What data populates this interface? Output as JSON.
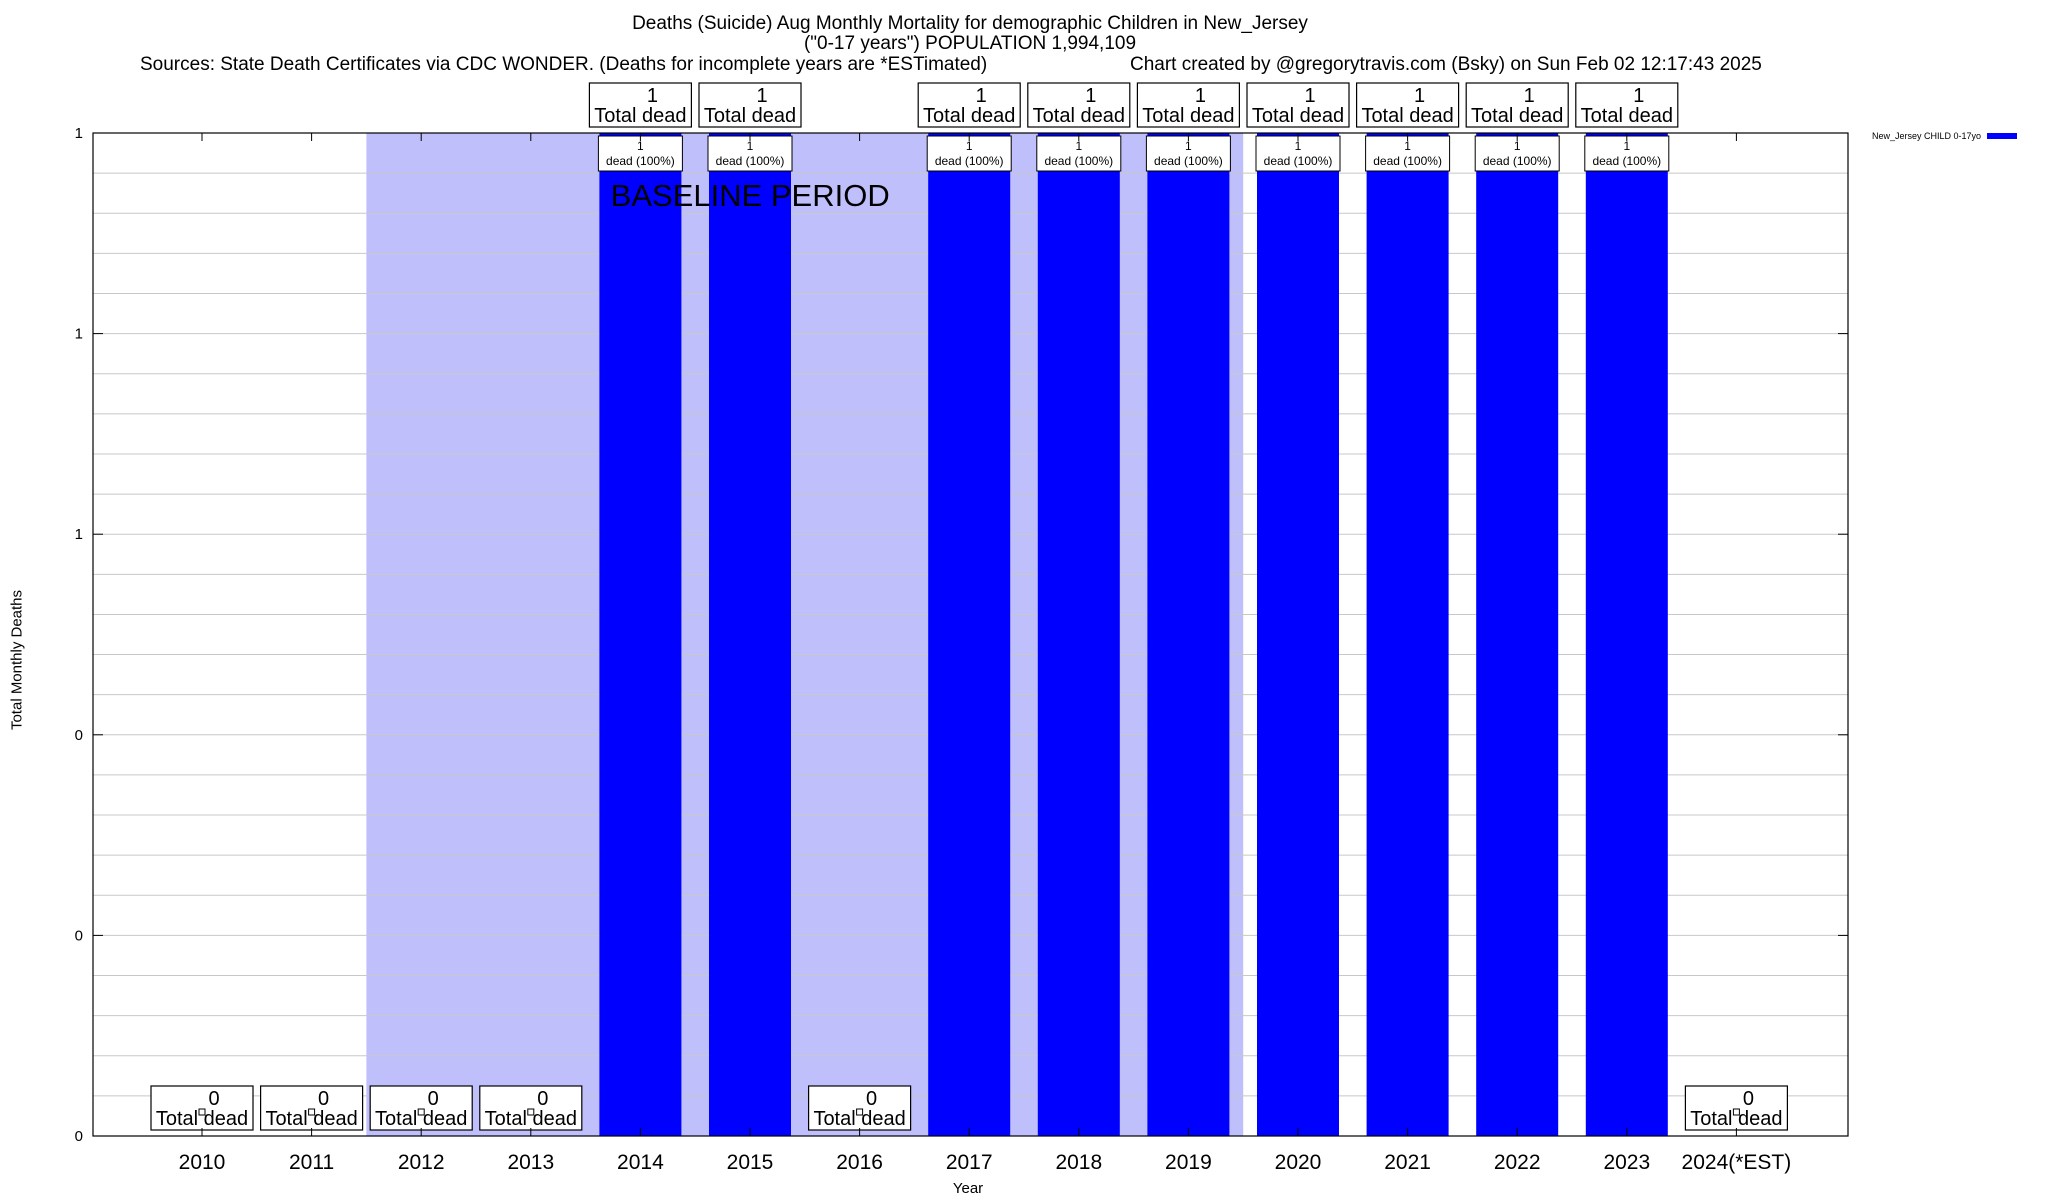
{
  "chart_data": {
    "type": "bar",
    "title": "Deaths (Suicide) Aug Monthly Mortality for demographic Children in New_Jersey",
    "subtitle": "(\"0-17 years\") POPULATION 1,994,109",
    "source": "Sources: State Death Certificates via CDC WONDER. (Deaths for incomplete years are *ESTimated)",
    "credit": "Chart created by @gregorytravis.com (Bsky) on Sun Feb 02 12:17:43 2025",
    "xlabel": "Year",
    "ylabel": "Total Monthly Deaths",
    "ylim": [
      0,
      1
    ],
    "ytick_values": [
      0,
      0.2,
      0.4,
      0.6,
      0.8,
      1.0
    ],
    "ytick_labels": [
      "0",
      "0",
      "0",
      "1",
      "1",
      "1"
    ],
    "minor_gridlines_per_major": 5,
    "categories": [
      "2010",
      "2011",
      "2012",
      "2013",
      "2014",
      "2015",
      "2016",
      "2017",
      "2018",
      "2019",
      "2020",
      "2021",
      "2022",
      "2023",
      "2024(*EST)"
    ],
    "series": [
      {
        "name": "New_Jersey CHILD 0-17yo",
        "values": [
          0,
          0,
          0,
          0,
          1,
          1,
          0,
          1,
          1,
          1,
          1,
          1,
          1,
          1,
          0
        ]
      }
    ],
    "total_label_line1": [
      "0",
      "0",
      "0",
      "0",
      "1",
      "1",
      "0",
      "1",
      "1",
      "1",
      "1",
      "1",
      "1",
      "1",
      "0"
    ],
    "total_label_line2": "Total dead",
    "bar_label_line1": "1",
    "bar_label_line2": "dead (100%)",
    "baseline_period": {
      "start": "2012",
      "end": "2019",
      "label": "BASELINE PERIOD"
    },
    "legend_position": "top-right",
    "colors": {
      "bar": "#0000ff",
      "baseline": "#bfbffb",
      "grid": "#c8c8c8",
      "axis": "#000000"
    }
  }
}
